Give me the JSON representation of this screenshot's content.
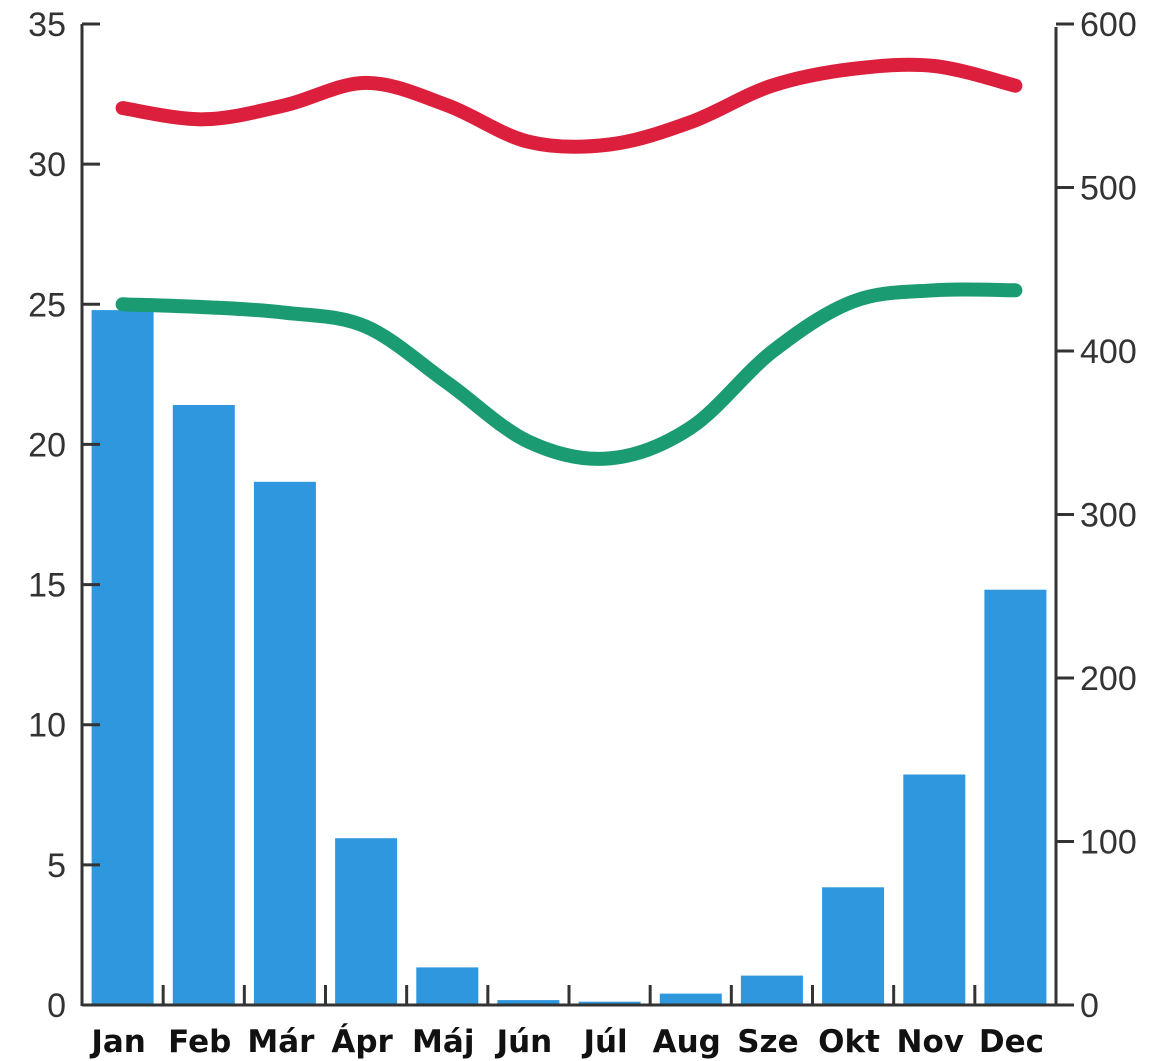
{
  "chart_data": {
    "type": "bar",
    "categories": [
      "Jan",
      "Feb",
      "Már",
      "Ápr",
      "Máj",
      "Jún",
      "Júl",
      "Aug",
      "Sze",
      "Okt",
      "Nov",
      "Dec"
    ],
    "left_axis": {
      "ylim": [
        0,
        35
      ],
      "ticks": [
        "0",
        "5",
        "10",
        "15",
        "20",
        "25",
        "30",
        "35"
      ]
    },
    "right_axis": {
      "ylim": [
        0,
        600
      ],
      "ticks": [
        "0",
        "100",
        "200",
        "300",
        "400",
        "500",
        "600"
      ]
    },
    "bars": {
      "axis": "right",
      "color": "#2e97dd",
      "values": [
        425,
        367,
        320,
        102,
        23,
        3,
        2,
        7,
        18,
        72,
        141,
        254
      ]
    },
    "series": [
      {
        "axis": "left",
        "color": "#dc1f3c",
        "values": [
          32.0,
          31.6,
          32.1,
          32.9,
          32.1,
          30.8,
          30.7,
          31.5,
          32.8,
          33.4,
          33.5,
          32.8
        ]
      },
      {
        "axis": "left",
        "color": "#1a9b72",
        "values": [
          25.0,
          24.9,
          24.7,
          24.2,
          22.2,
          20.1,
          19.5,
          20.6,
          23.3,
          25.1,
          25.5,
          25.5
        ]
      }
    ],
    "grid": false,
    "legend": "none"
  }
}
